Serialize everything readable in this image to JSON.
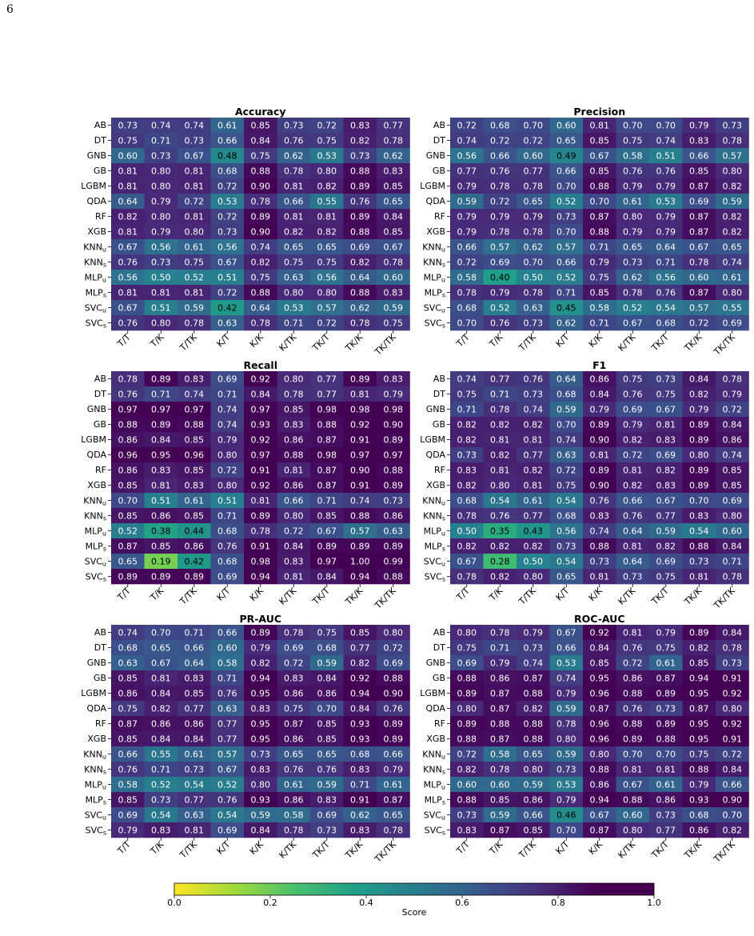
{
  "page_number": "6",
  "colormap": "viridis (reversed)",
  "colorbar": {
    "label": "Score",
    "ticks": [
      "0.0",
      "0.2",
      "0.4",
      "0.6",
      "0.8",
      "1.0"
    ],
    "range": [
      0,
      1
    ]
  },
  "chart_data": [
    {
      "type": "heatmap",
      "title": "Accuracy",
      "rows": [
        "AB",
        "DT",
        "GNB",
        "GB",
        "LGBM",
        "QDA",
        "RF",
        "XGB",
        "KNNu",
        "KNNs",
        "MLPu",
        "MLPs",
        "SVCu",
        "SVCs"
      ],
      "columns": [
        "T/T",
        "T/K",
        "T/TK",
        "K/T",
        "K/K",
        "K/TK",
        "TK/T",
        "TK/K",
        "TK/TK"
      ],
      "values": [
        [
          0.73,
          0.74,
          0.74,
          0.61,
          0.85,
          0.73,
          0.72,
          0.83,
          0.77
        ],
        [
          0.75,
          0.71,
          0.73,
          0.66,
          0.84,
          0.76,
          0.75,
          0.82,
          0.78
        ],
        [
          0.6,
          0.73,
          0.67,
          0.48,
          0.75,
          0.62,
          0.53,
          0.73,
          0.62
        ],
        [
          0.81,
          0.8,
          0.81,
          0.68,
          0.88,
          0.78,
          0.8,
          0.88,
          0.83
        ],
        [
          0.81,
          0.8,
          0.81,
          0.72,
          0.9,
          0.81,
          0.82,
          0.89,
          0.85
        ],
        [
          0.64,
          0.79,
          0.72,
          0.53,
          0.78,
          0.66,
          0.55,
          0.76,
          0.65
        ],
        [
          0.82,
          0.8,
          0.81,
          0.72,
          0.89,
          0.81,
          0.81,
          0.89,
          0.84
        ],
        [
          0.81,
          0.79,
          0.8,
          0.73,
          0.9,
          0.82,
          0.82,
          0.88,
          0.85
        ],
        [
          0.67,
          0.56,
          0.61,
          0.56,
          0.74,
          0.65,
          0.65,
          0.69,
          0.67
        ],
        [
          0.76,
          0.73,
          0.75,
          0.67,
          0.82,
          0.75,
          0.75,
          0.82,
          0.78
        ],
        [
          0.56,
          0.5,
          0.52,
          0.51,
          0.75,
          0.63,
          0.56,
          0.64,
          0.6
        ],
        [
          0.81,
          0.81,
          0.81,
          0.72,
          0.88,
          0.8,
          0.8,
          0.88,
          0.83
        ],
        [
          0.67,
          0.51,
          0.59,
          0.42,
          0.64,
          0.53,
          0.57,
          0.62,
          0.59
        ],
        [
          0.76,
          0.8,
          0.78,
          0.63,
          0.78,
          0.71,
          0.72,
          0.78,
          0.75
        ]
      ]
    },
    {
      "type": "heatmap",
      "title": "Precision",
      "rows": [
        "AB",
        "DT",
        "GNB",
        "GB",
        "LGBM",
        "QDA",
        "RF",
        "XGB",
        "KNNu",
        "KNNs",
        "MLPu",
        "MLPs",
        "SVCu",
        "SVCs"
      ],
      "columns": [
        "T/T",
        "T/K",
        "T/TK",
        "K/T",
        "K/K",
        "K/TK",
        "TK/T",
        "TK/K",
        "TK/TK"
      ],
      "values": [
        [
          0.72,
          0.68,
          0.7,
          0.6,
          0.81,
          0.7,
          0.7,
          0.79,
          0.73
        ],
        [
          0.74,
          0.72,
          0.72,
          0.65,
          0.85,
          0.75,
          0.74,
          0.83,
          0.78
        ],
        [
          0.56,
          0.66,
          0.6,
          0.49,
          0.67,
          0.58,
          0.51,
          0.66,
          0.57
        ],
        [
          0.77,
          0.76,
          0.77,
          0.66,
          0.85,
          0.76,
          0.76,
          0.85,
          0.8
        ],
        [
          0.79,
          0.78,
          0.78,
          0.7,
          0.88,
          0.79,
          0.79,
          0.87,
          0.82
        ],
        [
          0.59,
          0.72,
          0.65,
          0.52,
          0.7,
          0.61,
          0.53,
          0.69,
          0.59
        ],
        [
          0.79,
          0.79,
          0.79,
          0.73,
          0.87,
          0.8,
          0.79,
          0.87,
          0.82
        ],
        [
          0.79,
          0.78,
          0.78,
          0.7,
          0.88,
          0.79,
          0.79,
          0.87,
          0.82
        ],
        [
          0.66,
          0.57,
          0.62,
          0.57,
          0.71,
          0.65,
          0.64,
          0.67,
          0.65
        ],
        [
          0.72,
          0.69,
          0.7,
          0.66,
          0.79,
          0.73,
          0.71,
          0.78,
          0.74
        ],
        [
          0.58,
          0.4,
          0.5,
          0.52,
          0.75,
          0.62,
          0.56,
          0.6,
          0.61
        ],
        [
          0.78,
          0.79,
          0.78,
          0.71,
          0.85,
          0.78,
          0.76,
          0.87,
          0.8
        ],
        [
          0.68,
          0.52,
          0.63,
          0.45,
          0.58,
          0.52,
          0.54,
          0.57,
          0.55
        ],
        [
          0.7,
          0.76,
          0.73,
          0.62,
          0.71,
          0.67,
          0.68,
          0.72,
          0.69
        ]
      ]
    },
    {
      "type": "heatmap",
      "title": "Recall",
      "rows": [
        "AB",
        "DT",
        "GNB",
        "GB",
        "LGBM",
        "QDA",
        "RF",
        "XGB",
        "KNNu",
        "KNNs",
        "MLPu",
        "MLPs",
        "SVCu",
        "SVCs"
      ],
      "columns": [
        "T/T",
        "T/K",
        "T/TK",
        "K/T",
        "K/K",
        "K/TK",
        "TK/T",
        "TK/K",
        "TK/TK"
      ],
      "values": [
        [
          0.78,
          0.89,
          0.83,
          0.69,
          0.92,
          0.8,
          0.77,
          0.89,
          0.83
        ],
        [
          0.76,
          0.71,
          0.74,
          0.71,
          0.84,
          0.78,
          0.77,
          0.81,
          0.79
        ],
        [
          0.97,
          0.97,
          0.97,
          0.74,
          0.97,
          0.85,
          0.98,
          0.98,
          0.98
        ],
        [
          0.88,
          0.89,
          0.88,
          0.74,
          0.93,
          0.83,
          0.88,
          0.92,
          0.9
        ],
        [
          0.86,
          0.84,
          0.85,
          0.79,
          0.92,
          0.86,
          0.87,
          0.91,
          0.89
        ],
        [
          0.96,
          0.95,
          0.96,
          0.8,
          0.97,
          0.88,
          0.98,
          0.97,
          0.97
        ],
        [
          0.86,
          0.83,
          0.85,
          0.72,
          0.91,
          0.81,
          0.87,
          0.9,
          0.88
        ],
        [
          0.85,
          0.81,
          0.83,
          0.8,
          0.92,
          0.86,
          0.87,
          0.91,
          0.89
        ],
        [
          0.7,
          0.51,
          0.61,
          0.51,
          0.81,
          0.66,
          0.71,
          0.74,
          0.73
        ],
        [
          0.85,
          0.86,
          0.85,
          0.71,
          0.89,
          0.8,
          0.85,
          0.88,
          0.86
        ],
        [
          0.52,
          0.38,
          0.44,
          0.68,
          0.78,
          0.72,
          0.67,
          0.57,
          0.63
        ],
        [
          0.87,
          0.85,
          0.86,
          0.76,
          0.91,
          0.84,
          0.89,
          0.89,
          0.89
        ],
        [
          0.65,
          0.19,
          0.42,
          0.68,
          0.98,
          0.83,
          0.97,
          1.0,
          0.99
        ],
        [
          0.89,
          0.89,
          0.89,
          0.69,
          0.94,
          0.81,
          0.84,
          0.94,
          0.88
        ]
      ]
    },
    {
      "type": "heatmap",
      "title": "F1",
      "rows": [
        "AB",
        "DT",
        "GNB",
        "GB",
        "LGBM",
        "QDA",
        "RF",
        "XGB",
        "KNNu",
        "KNNs",
        "MLPu",
        "MLPs",
        "SVCu",
        "SVCs"
      ],
      "columns": [
        "T/T",
        "T/K",
        "T/TK",
        "K/T",
        "K/K",
        "K/TK",
        "TK/T",
        "TK/K",
        "TK/TK"
      ],
      "values": [
        [
          0.74,
          0.77,
          0.76,
          0.64,
          0.86,
          0.75,
          0.73,
          0.84,
          0.78
        ],
        [
          0.75,
          0.71,
          0.73,
          0.68,
          0.84,
          0.76,
          0.75,
          0.82,
          0.79
        ],
        [
          0.71,
          0.78,
          0.74,
          0.59,
          0.79,
          0.69,
          0.67,
          0.79,
          0.72
        ],
        [
          0.82,
          0.82,
          0.82,
          0.7,
          0.89,
          0.79,
          0.81,
          0.89,
          0.84
        ],
        [
          0.82,
          0.81,
          0.81,
          0.74,
          0.9,
          0.82,
          0.83,
          0.89,
          0.86
        ],
        [
          0.73,
          0.82,
          0.77,
          0.63,
          0.81,
          0.72,
          0.69,
          0.8,
          0.74
        ],
        [
          0.83,
          0.81,
          0.82,
          0.72,
          0.89,
          0.81,
          0.82,
          0.89,
          0.85
        ],
        [
          0.82,
          0.8,
          0.81,
          0.75,
          0.9,
          0.82,
          0.83,
          0.89,
          0.85
        ],
        [
          0.68,
          0.54,
          0.61,
          0.54,
          0.76,
          0.66,
          0.67,
          0.7,
          0.69
        ],
        [
          0.78,
          0.76,
          0.77,
          0.68,
          0.83,
          0.76,
          0.77,
          0.83,
          0.8
        ],
        [
          0.5,
          0.35,
          0.43,
          0.56,
          0.74,
          0.64,
          0.59,
          0.54,
          0.6
        ],
        [
          0.82,
          0.82,
          0.82,
          0.73,
          0.88,
          0.81,
          0.82,
          0.88,
          0.84
        ],
        [
          0.67,
          0.28,
          0.5,
          0.54,
          0.73,
          0.64,
          0.69,
          0.73,
          0.71
        ],
        [
          0.78,
          0.82,
          0.8,
          0.65,
          0.81,
          0.73,
          0.75,
          0.81,
          0.78
        ]
      ]
    },
    {
      "type": "heatmap",
      "title": "PR-AUC",
      "rows": [
        "AB",
        "DT",
        "GNB",
        "GB",
        "LGBM",
        "QDA",
        "RF",
        "XGB",
        "KNNu",
        "KNNs",
        "MLPu",
        "MLPs",
        "SVCu",
        "SVCs"
      ],
      "columns": [
        "T/T",
        "T/K",
        "T/TK",
        "K/T",
        "K/K",
        "K/TK",
        "TK/T",
        "TK/K",
        "TK/TK"
      ],
      "values": [
        [
          0.74,
          0.7,
          0.71,
          0.66,
          0.89,
          0.78,
          0.75,
          0.85,
          0.8
        ],
        [
          0.68,
          0.65,
          0.66,
          0.6,
          0.79,
          0.69,
          0.68,
          0.77,
          0.72
        ],
        [
          0.63,
          0.67,
          0.64,
          0.58,
          0.82,
          0.72,
          0.59,
          0.82,
          0.69
        ],
        [
          0.85,
          0.81,
          0.83,
          0.71,
          0.94,
          0.83,
          0.84,
          0.92,
          0.88
        ],
        [
          0.86,
          0.84,
          0.85,
          0.76,
          0.95,
          0.86,
          0.86,
          0.94,
          0.9
        ],
        [
          0.75,
          0.82,
          0.77,
          0.63,
          0.83,
          0.75,
          0.7,
          0.84,
          0.76
        ],
        [
          0.87,
          0.86,
          0.86,
          0.77,
          0.95,
          0.87,
          0.85,
          0.93,
          0.89
        ],
        [
          0.85,
          0.84,
          0.84,
          0.77,
          0.95,
          0.86,
          0.85,
          0.93,
          0.89
        ],
        [
          0.66,
          0.55,
          0.61,
          0.57,
          0.73,
          0.65,
          0.65,
          0.68,
          0.66
        ],
        [
          0.76,
          0.71,
          0.73,
          0.67,
          0.83,
          0.76,
          0.76,
          0.83,
          0.79
        ],
        [
          0.58,
          0.52,
          0.54,
          0.52,
          0.8,
          0.61,
          0.59,
          0.71,
          0.61
        ],
        [
          0.85,
          0.73,
          0.77,
          0.76,
          0.93,
          0.86,
          0.83,
          0.91,
          0.87
        ],
        [
          0.69,
          0.54,
          0.63,
          0.54,
          0.59,
          0.58,
          0.69,
          0.62,
          0.65
        ],
        [
          0.79,
          0.83,
          0.81,
          0.69,
          0.84,
          0.78,
          0.73,
          0.83,
          0.78
        ]
      ]
    },
    {
      "type": "heatmap",
      "title": "ROC-AUC",
      "rows": [
        "AB",
        "DT",
        "GNB",
        "GB",
        "LGBM",
        "QDA",
        "RF",
        "XGB",
        "KNNu",
        "KNNs",
        "MLPu",
        "MLPs",
        "SVCu",
        "SVCs"
      ],
      "columns": [
        "T/T",
        "T/K",
        "T/TK",
        "K/T",
        "K/K",
        "K/TK",
        "TK/T",
        "TK/K",
        "TK/TK"
      ],
      "values": [
        [
          0.8,
          0.78,
          0.79,
          0.67,
          0.92,
          0.81,
          0.79,
          0.89,
          0.84
        ],
        [
          0.75,
          0.71,
          0.73,
          0.66,
          0.84,
          0.76,
          0.75,
          0.82,
          0.78
        ],
        [
          0.69,
          0.79,
          0.74,
          0.53,
          0.85,
          0.72,
          0.61,
          0.85,
          0.73
        ],
        [
          0.88,
          0.86,
          0.87,
          0.74,
          0.95,
          0.86,
          0.87,
          0.94,
          0.91
        ],
        [
          0.89,
          0.87,
          0.88,
          0.79,
          0.96,
          0.88,
          0.89,
          0.95,
          0.92
        ],
        [
          0.8,
          0.87,
          0.82,
          0.59,
          0.87,
          0.76,
          0.73,
          0.87,
          0.8
        ],
        [
          0.89,
          0.88,
          0.88,
          0.78,
          0.96,
          0.88,
          0.89,
          0.95,
          0.92
        ],
        [
          0.88,
          0.87,
          0.88,
          0.8,
          0.96,
          0.89,
          0.88,
          0.95,
          0.91
        ],
        [
          0.72,
          0.58,
          0.65,
          0.59,
          0.8,
          0.7,
          0.7,
          0.75,
          0.72
        ],
        [
          0.82,
          0.78,
          0.8,
          0.73,
          0.88,
          0.81,
          0.81,
          0.88,
          0.84
        ],
        [
          0.6,
          0.6,
          0.59,
          0.53,
          0.86,
          0.67,
          0.61,
          0.79,
          0.66
        ],
        [
          0.88,
          0.85,
          0.86,
          0.79,
          0.94,
          0.88,
          0.86,
          0.93,
          0.9
        ],
        [
          0.73,
          0.59,
          0.66,
          0.46,
          0.67,
          0.6,
          0.73,
          0.68,
          0.7
        ],
        [
          0.83,
          0.87,
          0.85,
          0.7,
          0.87,
          0.8,
          0.77,
          0.86,
          0.82
        ]
      ]
    }
  ]
}
